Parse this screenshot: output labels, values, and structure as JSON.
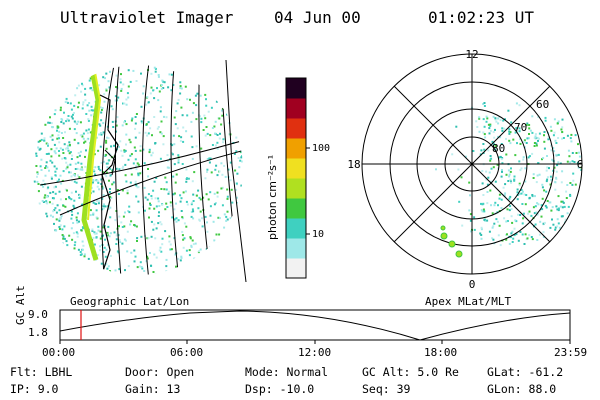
{
  "header": {
    "title": "Ultraviolet Imager",
    "date": "04 Jun 00",
    "time": "01:02:23 UT"
  },
  "left_panel": {
    "label": "Geographic Lat/Lon"
  },
  "colorbar": {
    "unit_label": "photon cm⁻²s⁻¹",
    "ticks": [
      "100",
      "10"
    ],
    "colors": [
      "#f2f2f2",
      "#9ee8e8",
      "#3fd0c0",
      "#40c840",
      "#b0e020",
      "#f0e020",
      "#f0a000",
      "#e03010",
      "#a00020",
      "#200020"
    ]
  },
  "polar_plot": {
    "label": "Apex MLat/MLT",
    "mlt_labels": {
      "top": "12",
      "left": "18",
      "right": "6",
      "bottom": "0"
    },
    "lat_labels": [
      "60",
      "70",
      "80"
    ]
  },
  "altitude_plot": {
    "ylabel": "GC Alt",
    "yticks": [
      "9.0",
      "1.8"
    ],
    "xticks": [
      "00:00",
      "06:00",
      "12:00",
      "18:00",
      "23:59"
    ],
    "current_time_color": "#e01010"
  },
  "info": {
    "row1": [
      "Flt: LBHL",
      "Door: Open",
      "Mode: Normal",
      "GC Alt: 5.0 Re",
      "GLat: -61.2"
    ],
    "row2": [
      "IP:  9.0",
      "Gain: 13",
      "Dsp:  -10.0",
      "Seq: 39",
      "GLon:  88.0"
    ]
  }
}
